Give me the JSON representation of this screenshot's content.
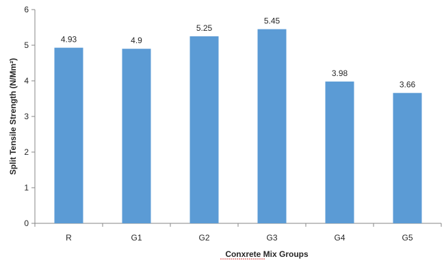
{
  "chart_data": {
    "type": "bar",
    "categories": [
      "R",
      "G1",
      "G2",
      "G3",
      "G4",
      "G5"
    ],
    "values": [
      4.93,
      4.9,
      5.25,
      5.45,
      3.98,
      3.66
    ],
    "data_labels": [
      "4.93",
      "4.9",
      "5.25",
      "5.45",
      "3.98",
      "3.66"
    ],
    "xlabel": "Conxrete Mix Groups",
    "ylabel": "Split Tensile Strength (N/Mm²)",
    "ylim": [
      0,
      6
    ],
    "yticks": [
      "0",
      "1",
      "2",
      "3",
      "4",
      "5",
      "6"
    ],
    "grid": false,
    "legend": "none",
    "bar_color": "#5b9bd5"
  }
}
